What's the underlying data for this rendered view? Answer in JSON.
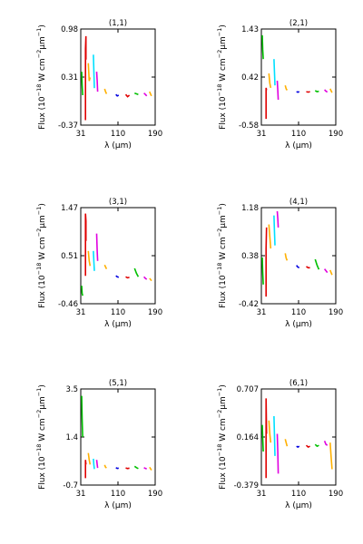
{
  "figure": {
    "ylabel": "Flux (10^-18 W cm^-2 μm^-1)",
    "xlabel": "λ (μm)",
    "xticks": [
      "31",
      "110",
      "190"
    ]
  },
  "chart_data": [
    {
      "type": "line",
      "title": "(1,1)",
      "xlabel": "λ (μm)",
      "ylabel": "Flux (10^-18 W cm^-2 μm^-1)",
      "xlim": [
        31,
        190
      ],
      "ylim": [
        -0.37,
        0.98
      ],
      "xticks": [
        "31",
        "110",
        "190"
      ],
      "yticks": [
        "0.98",
        "0.31",
        "-0.37"
      ],
      "segments": [
        {
          "color": "#00c000",
          "x": [
            33,
            34,
            35
          ],
          "y": [
            0.38,
            0.2,
            0.05
          ]
        },
        {
          "color": "#e00000",
          "x": [
            41,
            41,
            42,
            42
          ],
          "y": [
            -0.3,
            0.7,
            0.88,
            0.55
          ]
        },
        {
          "color": "#ffb000",
          "x": [
            47,
            49,
            51
          ],
          "y": [
            0.5,
            0.25,
            0.3
          ]
        },
        {
          "color": "#00e0ff",
          "x": [
            58,
            59,
            60
          ],
          "y": [
            0.62,
            0.4,
            0.15
          ]
        },
        {
          "color": "#e000e0",
          "x": [
            65,
            66,
            67
          ],
          "y": [
            0.38,
            0.25,
            0.1
          ]
        },
        {
          "color": "#ffb000",
          "x": [
            82,
            84,
            86
          ],
          "y": [
            0.14,
            0.1,
            0.07
          ]
        },
        {
          "color": "#0000e0",
          "x": [
            106,
            109,
            112
          ],
          "y": [
            0.06,
            0.04,
            0.05
          ]
        },
        {
          "color": "#e00000",
          "x": [
            127,
            131,
            135
          ],
          "y": [
            0.06,
            0.03,
            0.05
          ]
        },
        {
          "color": "#00c000",
          "x": [
            146,
            150,
            154
          ],
          "y": [
            0.08,
            0.07,
            0.06
          ]
        },
        {
          "color": "#e000e0",
          "x": [
            166,
            169,
            172
          ],
          "y": [
            0.08,
            0.06,
            0.04
          ]
        },
        {
          "color": "#ffb000",
          "x": [
            178,
            180,
            182
          ],
          "y": [
            0.1,
            0.07,
            0.04
          ]
        }
      ]
    },
    {
      "type": "line",
      "title": "(2,1)",
      "xlabel": "λ (μm)",
      "ylabel": "Flux (10^-18 W cm^-2 μm^-1)",
      "xlim": [
        31,
        190
      ],
      "ylim": [
        -0.58,
        1.43
      ],
      "xticks": [
        "31",
        "110",
        "190"
      ],
      "yticks": [
        "1.43",
        "0.42",
        "-0.58"
      ],
      "segments": [
        {
          "color": "#00c000",
          "x": [
            33,
            34,
            35
          ],
          "y": [
            1.3,
            1.0,
            0.8
          ]
        },
        {
          "color": "#e00000",
          "x": [
            41,
            41,
            42
          ],
          "y": [
            -0.45,
            0.2,
            0.15
          ]
        },
        {
          "color": "#ffb000",
          "x": [
            47,
            49,
            51
          ],
          "y": [
            0.5,
            0.3,
            0.2
          ]
        },
        {
          "color": "#00e0ff",
          "x": [
            58,
            59,
            60
          ],
          "y": [
            0.8,
            0.55,
            0.25
          ]
        },
        {
          "color": "#e000e0",
          "x": [
            65,
            66,
            67
          ],
          "y": [
            0.35,
            0.15,
            -0.05
          ]
        },
        {
          "color": "#ffb000",
          "x": [
            82,
            84,
            86
          ],
          "y": [
            0.25,
            0.18,
            0.15
          ]
        },
        {
          "color": "#0000e0",
          "x": [
            106,
            109,
            112
          ],
          "y": [
            0.12,
            0.11,
            0.12
          ]
        },
        {
          "color": "#e00000",
          "x": [
            127,
            131,
            135
          ],
          "y": [
            0.12,
            0.11,
            0.12
          ]
        },
        {
          "color": "#00c000",
          "x": [
            146,
            150,
            154
          ],
          "y": [
            0.14,
            0.12,
            0.13
          ]
        },
        {
          "color": "#e000e0",
          "x": [
            166,
            169,
            172
          ],
          "y": [
            0.16,
            0.13,
            0.11
          ]
        },
        {
          "color": "#ffb000",
          "x": [
            178,
            180,
            182
          ],
          "y": [
            0.18,
            0.14,
            0.1
          ]
        }
      ]
    },
    {
      "type": "line",
      "title": "(3,1)",
      "xlabel": "λ (μm)",
      "ylabel": "Flux (10^-18 W cm^-2 μm^-1)",
      "xlim": [
        31,
        190
      ],
      "ylim": [
        -0.46,
        1.47
      ],
      "xticks": [
        "31",
        "110",
        "190"
      ],
      "yticks": [
        "1.47",
        "0.51",
        "-0.46"
      ],
      "segments": [
        {
          "color": "#00c000",
          "x": [
            33,
            34,
            35
          ],
          "y": [
            -0.1,
            -0.25,
            -0.3
          ]
        },
        {
          "color": "#e00000",
          "x": [
            41,
            41,
            42,
            42
          ],
          "y": [
            0.1,
            1.35,
            1.2,
            0.8
          ]
        },
        {
          "color": "#ffb000",
          "x": [
            47,
            49,
            51
          ],
          "y": [
            0.6,
            0.4,
            0.3
          ]
        },
        {
          "color": "#00e0ff",
          "x": [
            58,
            59,
            60
          ],
          "y": [
            0.6,
            0.4,
            0.2
          ]
        },
        {
          "color": "#e000e0",
          "x": [
            65,
            66,
            67
          ],
          "y": [
            0.95,
            0.6,
            0.4
          ]
        },
        {
          "color": "#ffb000",
          "x": [
            82,
            84,
            86
          ],
          "y": [
            0.32,
            0.28,
            0.24
          ]
        },
        {
          "color": "#0000e0",
          "x": [
            106,
            109,
            112
          ],
          "y": [
            0.1,
            0.08,
            0.07
          ]
        },
        {
          "color": "#e00000",
          "x": [
            127,
            131,
            135
          ],
          "y": [
            0.08,
            0.06,
            0.07
          ]
        },
        {
          "color": "#00c000",
          "x": [
            146,
            150,
            154
          ],
          "y": [
            0.25,
            0.15,
            0.08
          ]
        },
        {
          "color": "#e000e0",
          "x": [
            166,
            169,
            172
          ],
          "y": [
            0.08,
            0.05,
            0.03
          ]
        },
        {
          "color": "#ffb000",
          "x": [
            178,
            180,
            182
          ],
          "y": [
            0.05,
            0.03,
            0.0
          ]
        }
      ]
    },
    {
      "type": "line",
      "title": "(4,1)",
      "xlabel": "λ (μm)",
      "ylabel": "Flux (10^-18 W cm^-2 μm^-1)",
      "xlim": [
        31,
        190
      ],
      "ylim": [
        -0.42,
        1.18
      ],
      "xticks": [
        "31",
        "110",
        "190"
      ],
      "yticks": [
        "1.18",
        "0.38",
        "-0.42"
      ],
      "segments": [
        {
          "color": "#00c000",
          "x": [
            33,
            34,
            35
          ],
          "y": [
            0.35,
            0.1,
            -0.1
          ]
        },
        {
          "color": "#e00000",
          "x": [
            41,
            41,
            42
          ],
          "y": [
            -0.3,
            0.5,
            0.85
          ]
        },
        {
          "color": "#ffb000",
          "x": [
            47,
            49,
            51
          ],
          "y": [
            0.9,
            0.7,
            0.5
          ]
        },
        {
          "color": "#00e0ff",
          "x": [
            58,
            59,
            60
          ],
          "y": [
            1.05,
            0.8,
            0.55
          ]
        },
        {
          "color": "#e000e0",
          "x": [
            65,
            66,
            67
          ],
          "y": [
            1.12,
            1.0,
            0.85
          ]
        },
        {
          "color": "#ffb000",
          "x": [
            82,
            84,
            86
          ],
          "y": [
            0.42,
            0.34,
            0.3
          ]
        },
        {
          "color": "#0000e0",
          "x": [
            106,
            109,
            112
          ],
          "y": [
            0.22,
            0.19,
            0.18
          ]
        },
        {
          "color": "#e00000",
          "x": [
            127,
            131,
            135
          ],
          "y": [
            0.2,
            0.18,
            0.18
          ]
        },
        {
          "color": "#00c000",
          "x": [
            146,
            150,
            154
          ],
          "y": [
            0.32,
            0.22,
            0.15
          ]
        },
        {
          "color": "#e000e0",
          "x": [
            166,
            169,
            172
          ],
          "y": [
            0.16,
            0.13,
            0.1
          ]
        },
        {
          "color": "#ffb000",
          "x": [
            178,
            180,
            182
          ],
          "y": [
            0.14,
            0.1,
            0.06
          ]
        }
      ]
    },
    {
      "type": "line",
      "title": "(5,1)",
      "xlabel": "λ (μm)",
      "ylabel": "Flux (10^-18 W cm^-2 μm^-1)",
      "xlim": [
        31,
        190
      ],
      "ylim": [
        -0.7,
        3.5
      ],
      "xticks": [
        "31",
        "110",
        "190"
      ],
      "yticks": [
        "3.5",
        "1.4",
        "-0.7"
      ],
      "segments": [
        {
          "color": "#00c000",
          "x": [
            33,
            34,
            35
          ],
          "y": [
            3.2,
            2.2,
            1.4
          ]
        },
        {
          "color": "#e00000",
          "x": [
            41,
            41,
            42
          ],
          "y": [
            -0.4,
            0.4,
            0.2
          ]
        },
        {
          "color": "#ffb000",
          "x": [
            47,
            49,
            51
          ],
          "y": [
            0.7,
            0.4,
            0.2
          ]
        },
        {
          "color": "#00e0ff",
          "x": [
            58,
            59,
            60
          ],
          "y": [
            0.45,
            0.2,
            0.0
          ]
        },
        {
          "color": "#e000e0",
          "x": [
            65,
            66,
            67
          ],
          "y": [
            0.4,
            0.2,
            0.05
          ]
        },
        {
          "color": "#ffb000",
          "x": [
            82,
            84,
            86
          ],
          "y": [
            0.18,
            0.08,
            0.05
          ]
        },
        {
          "color": "#0000e0",
          "x": [
            106,
            109,
            112
          ],
          "y": [
            0.06,
            0.03,
            0.04
          ]
        },
        {
          "color": "#e00000",
          "x": [
            127,
            131,
            135
          ],
          "y": [
            0.05,
            0.02,
            0.04
          ]
        },
        {
          "color": "#00c000",
          "x": [
            146,
            150,
            154
          ],
          "y": [
            0.12,
            0.06,
            0.02
          ]
        },
        {
          "color": "#e000e0",
          "x": [
            166,
            169,
            172
          ],
          "y": [
            0.06,
            0.03,
            0.01
          ]
        },
        {
          "color": "#ffb000",
          "x": [
            178,
            180,
            182
          ],
          "y": [
            0.08,
            0.02,
            -0.05
          ]
        }
      ]
    },
    {
      "type": "line",
      "title": "(6,1)",
      "xlabel": "λ (μm)",
      "ylabel": "Flux (10^-18 W cm^-2 μm^-1)",
      "xlim": [
        31,
        190
      ],
      "ylim": [
        -0.379,
        0.707
      ],
      "xticks": [
        "31",
        "110",
        "190"
      ],
      "yticks": [
        "0.707",
        "0.164",
        "-0.379"
      ],
      "segments": [
        {
          "color": "#00c000",
          "x": [
            33,
            34,
            35
          ],
          "y": [
            0.3,
            0.15,
            0.0
          ]
        },
        {
          "color": "#e00000",
          "x": [
            41,
            41,
            42
          ],
          "y": [
            -0.3,
            0.6,
            0.2
          ]
        },
        {
          "color": "#ffb000",
          "x": [
            47,
            49,
            51
          ],
          "y": [
            0.35,
            0.2,
            0.1
          ]
        },
        {
          "color": "#00e0ff",
          "x": [
            58,
            59,
            60
          ],
          "y": [
            0.4,
            0.2,
            -0.05
          ]
        },
        {
          "color": "#e000e0",
          "x": [
            65,
            66,
            67
          ],
          "y": [
            0.2,
            0.0,
            -0.25
          ]
        },
        {
          "color": "#ffb000",
          "x": [
            82,
            84,
            86
          ],
          "y": [
            0.14,
            0.1,
            0.06
          ]
        },
        {
          "color": "#0000e0",
          "x": [
            106,
            109,
            112
          ],
          "y": [
            0.06,
            0.05,
            0.06
          ]
        },
        {
          "color": "#e00000",
          "x": [
            127,
            131,
            135
          ],
          "y": [
            0.07,
            0.05,
            0.06
          ]
        },
        {
          "color": "#00c000",
          "x": [
            146,
            150,
            154
          ],
          "y": [
            0.08,
            0.06,
            0.07
          ]
        },
        {
          "color": "#e000e0",
          "x": [
            166,
            169,
            172
          ],
          "y": [
            0.12,
            0.08,
            0.07
          ]
        },
        {
          "color": "#ffb000",
          "x": [
            178,
            180,
            182
          ],
          "y": [
            0.1,
            -0.05,
            -0.2
          ]
        }
      ]
    }
  ]
}
